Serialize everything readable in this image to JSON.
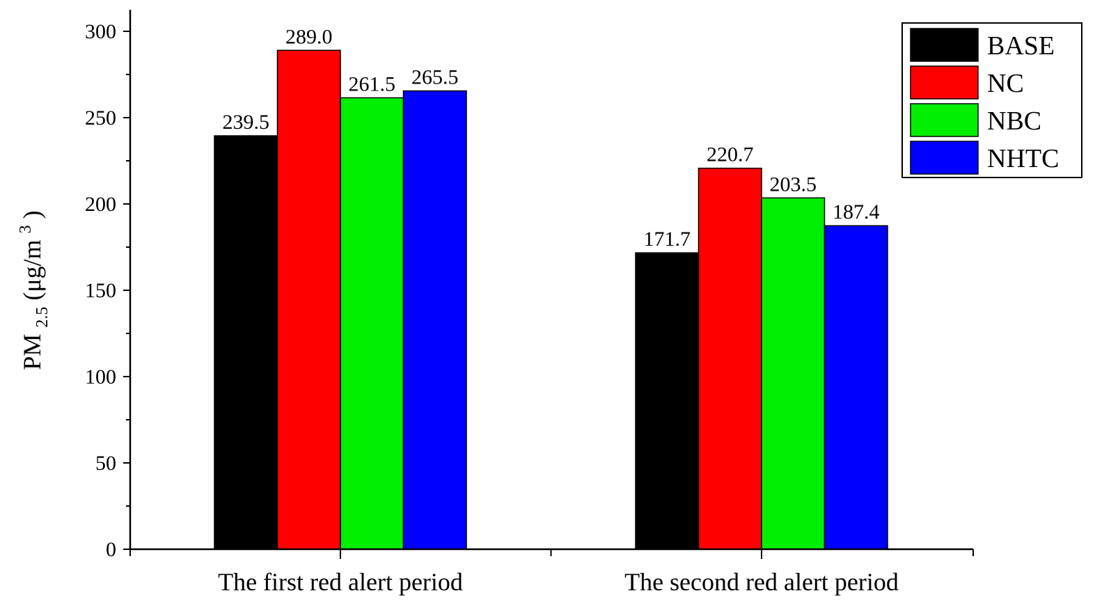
{
  "chart_data": {
    "type": "bar",
    "title": "",
    "xlabel": "",
    "ylabel": {
      "main": "PM",
      "subscript": "2.5",
      "unit_open": "(μg/m",
      "unit_sup": "3",
      "unit_close": ")"
    },
    "ylim": [
      0,
      300
    ],
    "yticks": [
      0,
      50,
      100,
      150,
      200,
      250,
      300
    ],
    "categories": [
      "The first red alert period",
      "The second red alert period"
    ],
    "series": [
      {
        "name": "BASE",
        "color": "#000000",
        "values": [
          239.5,
          171.7
        ],
        "labels": [
          "239.5",
          "171.7"
        ]
      },
      {
        "name": "NC",
        "color": "#ff0000",
        "values": [
          289.0,
          220.7
        ],
        "labels": [
          "289.0",
          "220.7"
        ]
      },
      {
        "name": "NBC",
        "color": "#00ee00",
        "values": [
          261.5,
          203.5
        ],
        "labels": [
          "261.5",
          "203.5"
        ]
      },
      {
        "name": "NHTC",
        "color": "#0000ff",
        "values": [
          265.5,
          187.4
        ],
        "labels": [
          "265.5",
          "187.4"
        ]
      }
    ],
    "legend_position": "top-right",
    "grid": false
  }
}
